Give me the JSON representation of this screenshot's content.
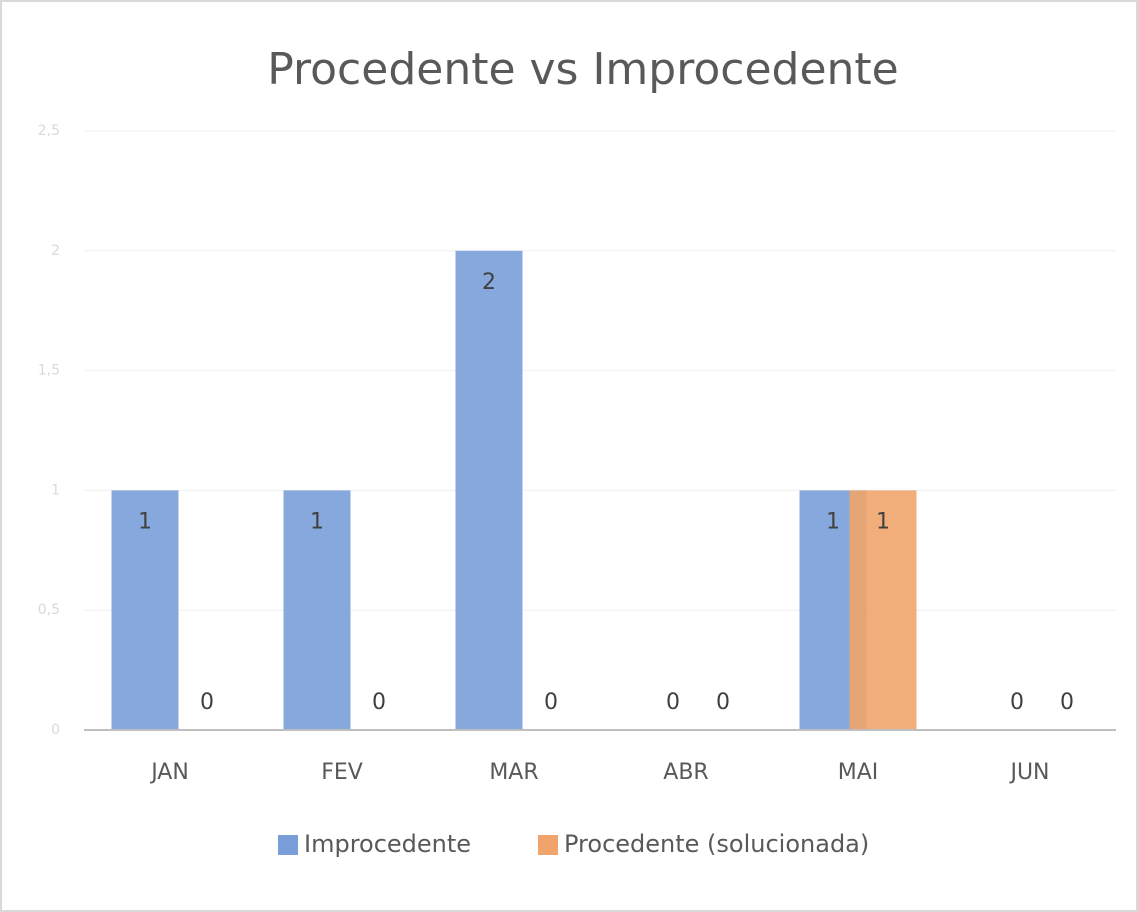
{
  "chart_data": {
    "type": "bar",
    "title": "Procedente vs Improcedente",
    "categories": [
      "JAN",
      "FEV",
      "MAR",
      "ABR",
      "MAI",
      "JUN"
    ],
    "series": [
      {
        "name": "Improcedente",
        "color": "#7a9fd8",
        "values": [
          1,
          1,
          2,
          0,
          1,
          0
        ]
      },
      {
        "name": "Procedente (solucionada)",
        "color": "#f0a46b",
        "values": [
          0,
          0,
          0,
          0,
          1,
          0
        ]
      }
    ],
    "ylim": [
      0,
      2.5
    ],
    "yticks": [
      0,
      {
        "value": 0.5,
        "label": "0,5"
      },
      1,
      {
        "value": 1.5,
        "label": "1,5"
      },
      2,
      {
        "value": 2.5,
        "label": "2,5"
      }
    ],
    "grid": true,
    "legend": "bottom",
    "data_labels": true
  }
}
